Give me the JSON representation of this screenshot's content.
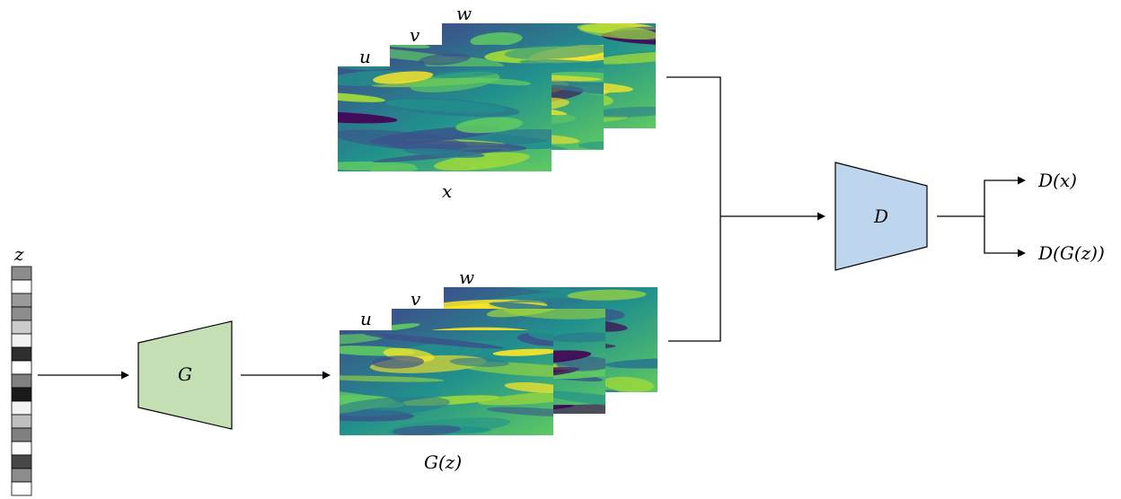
{
  "labels": {
    "z": "z",
    "G": "G",
    "D": "D",
    "real_u": "u",
    "real_v": "v",
    "real_w": "w",
    "real_caption": "x",
    "gen_u": "u",
    "gen_v": "v",
    "gen_w": "w",
    "gen_caption": "G(z)",
    "out_real": "D(x)",
    "out_fake": "D(G(z))"
  },
  "latent_vector": {
    "cells": [
      0.55,
      1.0,
      0.6,
      0.55,
      0.8,
      0.95,
      0.18,
      1.0,
      0.5,
      0.1,
      0.95,
      0.75,
      0.5,
      0.98,
      0.28,
      0.55,
      1.0
    ]
  },
  "colors": {
    "generator_fill": "#c5dfb4",
    "discriminator_fill": "#bdd6ee",
    "stroke": "#000000",
    "viridis_low": "#440154",
    "viridis_mid": "#21918c",
    "viridis_high": "#fde725"
  }
}
